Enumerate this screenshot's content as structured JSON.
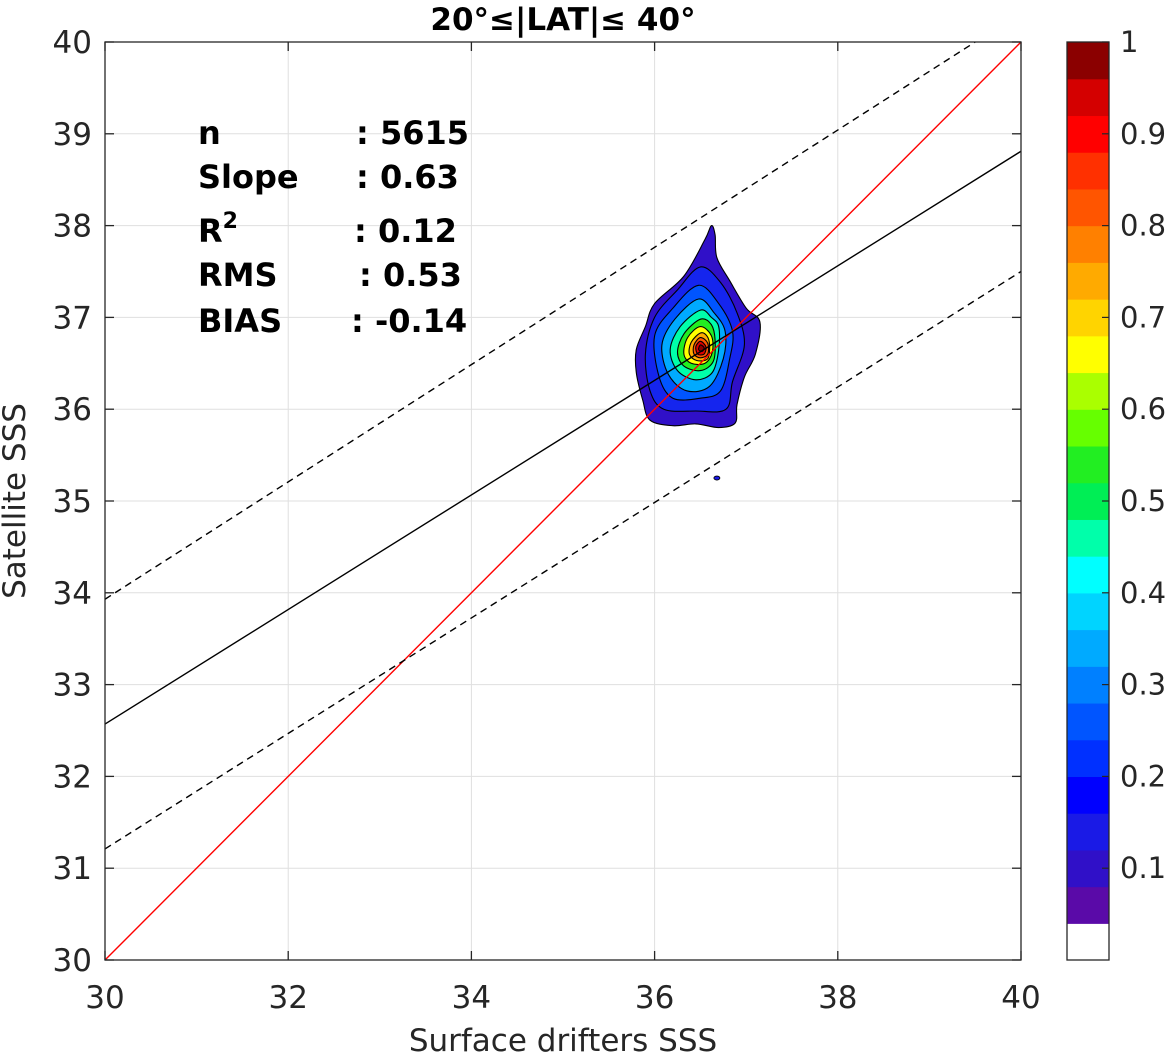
{
  "chart_data": {
    "type": "contour",
    "title": "20°≤|LAT|≤ 40°",
    "xlabel": "Surface drifters SSS",
    "ylabel": "Satellite SSS",
    "xlim": [
      30,
      40
    ],
    "ylim": [
      30,
      40
    ],
    "xticks": [
      "30",
      "32",
      "34",
      "36",
      "38",
      "40"
    ],
    "yticks": [
      "30",
      "31",
      "32",
      "33",
      "34",
      "35",
      "36",
      "37",
      "38",
      "39",
      "40"
    ],
    "grid": true,
    "stats": [
      {
        "label": "n",
        "value": ": 5615"
      },
      {
        "label": "Slope",
        "value": ": 0.63"
      },
      {
        "label": "R",
        "sup": "2",
        "value": ": 0.12"
      },
      {
        "label": "RMS",
        "value": ": 0.53"
      },
      {
        "label": "BIAS",
        "value": ": -0.14"
      }
    ],
    "lines": [
      {
        "name": "one-to-one",
        "x": [
          30,
          40
        ],
        "y": [
          30,
          40
        ],
        "color": "#ff0000",
        "dash": false
      },
      {
        "name": "regression",
        "x": [
          30,
          40
        ],
        "y": [
          32.57,
          38.81
        ],
        "color": "#000000",
        "dash": false
      },
      {
        "name": "upper-bound",
        "x": [
          30,
          39.5
        ],
        "y": [
          33.93,
          40
        ],
        "color": "#000000",
        "dash": true
      },
      {
        "name": "lower-bound",
        "x": [
          30,
          40
        ],
        "y": [
          31.21,
          37.5
        ],
        "color": "#000000",
        "dash": true
      }
    ],
    "density_peak": {
      "x": 36.5,
      "y": 36.65
    },
    "contour_levels": [
      {
        "level": 0.05,
        "color": "#3010c8",
        "points": [
          [
            36.62,
            38.0
          ],
          [
            36.55,
            37.85
          ],
          [
            36.32,
            37.45
          ],
          [
            36.0,
            37.15
          ],
          [
            35.9,
            36.9
          ],
          [
            35.8,
            36.65
          ],
          [
            35.8,
            36.4
          ],
          [
            35.87,
            36.1
          ],
          [
            35.95,
            35.88
          ],
          [
            36.2,
            35.82
          ],
          [
            36.45,
            35.84
          ],
          [
            36.7,
            35.8
          ],
          [
            36.88,
            35.85
          ],
          [
            36.9,
            36.05
          ],
          [
            36.98,
            36.35
          ],
          [
            37.1,
            36.6
          ],
          [
            37.15,
            36.95
          ],
          [
            37.0,
            37.1
          ],
          [
            36.82,
            37.4
          ],
          [
            36.68,
            37.65
          ],
          [
            36.66,
            37.9
          ]
        ]
      },
      {
        "level": 0.1,
        "color": "#1525ee",
        "points": [
          [
            36.5,
            37.55
          ],
          [
            36.25,
            37.3
          ],
          [
            36.0,
            37.0
          ],
          [
            35.9,
            36.6
          ],
          [
            35.95,
            36.2
          ],
          [
            36.1,
            36.0
          ],
          [
            36.45,
            35.98
          ],
          [
            36.78,
            36.0
          ],
          [
            36.85,
            36.3
          ],
          [
            36.98,
            36.7
          ],
          [
            36.9,
            37.05
          ],
          [
            36.72,
            37.38
          ]
        ]
      },
      {
        "level": 0.2,
        "color": "#0055ff",
        "points": [
          [
            36.48,
            37.35
          ],
          [
            36.2,
            37.1
          ],
          [
            36.0,
            36.8
          ],
          [
            36.05,
            36.35
          ],
          [
            36.2,
            36.12
          ],
          [
            36.5,
            36.12
          ],
          [
            36.72,
            36.2
          ],
          [
            36.82,
            36.55
          ],
          [
            36.85,
            36.85
          ],
          [
            36.7,
            37.15
          ]
        ]
      },
      {
        "level": 0.3,
        "color": "#00aaff",
        "points": [
          [
            36.48,
            37.2
          ],
          [
            36.22,
            36.98
          ],
          [
            36.08,
            36.7
          ],
          [
            36.15,
            36.38
          ],
          [
            36.35,
            36.2
          ],
          [
            36.6,
            36.25
          ],
          [
            36.75,
            36.55
          ],
          [
            36.77,
            36.85
          ],
          [
            36.65,
            37.05
          ]
        ]
      },
      {
        "level": 0.4,
        "color": "#00ffaa",
        "points": [
          [
            36.5,
            37.08
          ],
          [
            36.28,
            36.9
          ],
          [
            36.17,
            36.65
          ],
          [
            36.25,
            36.42
          ],
          [
            36.45,
            36.32
          ],
          [
            36.63,
            36.4
          ],
          [
            36.7,
            36.65
          ],
          [
            36.7,
            36.9
          ],
          [
            36.62,
            37.0
          ]
        ]
      },
      {
        "level": 0.5,
        "color": "#22ee22",
        "points": [
          [
            36.5,
            36.98
          ],
          [
            36.32,
            36.82
          ],
          [
            36.25,
            36.62
          ],
          [
            36.32,
            36.47
          ],
          [
            36.5,
            36.42
          ],
          [
            36.64,
            36.52
          ],
          [
            36.66,
            36.75
          ],
          [
            36.62,
            36.92
          ]
        ]
      },
      {
        "level": 0.6,
        "color": "#ffff00",
        "points": [
          [
            36.5,
            36.9
          ],
          [
            36.36,
            36.78
          ],
          [
            36.32,
            36.6
          ],
          [
            36.4,
            36.5
          ],
          [
            36.55,
            36.5
          ],
          [
            36.63,
            36.62
          ],
          [
            36.62,
            36.8
          ]
        ]
      },
      {
        "level": 0.7,
        "color": "#ffaa00",
        "points": [
          [
            36.5,
            36.83
          ],
          [
            36.4,
            36.73
          ],
          [
            36.38,
            36.6
          ],
          [
            36.46,
            36.53
          ],
          [
            36.58,
            36.55
          ],
          [
            36.6,
            36.7
          ],
          [
            36.57,
            36.8
          ]
        ]
      },
      {
        "level": 0.8,
        "color": "#ff5500",
        "points": [
          [
            36.5,
            36.78
          ],
          [
            36.43,
            36.7
          ],
          [
            36.43,
            36.6
          ],
          [
            36.5,
            36.56
          ],
          [
            36.58,
            36.6
          ],
          [
            36.58,
            36.72
          ]
        ]
      },
      {
        "level": 0.9,
        "color": "#dd0000",
        "points": [
          [
            36.5,
            36.74
          ],
          [
            36.45,
            36.68
          ],
          [
            36.47,
            36.6
          ],
          [
            36.54,
            36.6
          ],
          [
            36.56,
            36.68
          ]
        ]
      },
      {
        "level": 1.0,
        "color": "#8b0000",
        "points": [
          [
            36.5,
            36.7
          ],
          [
            36.48,
            36.65
          ],
          [
            36.52,
            36.63
          ],
          [
            36.54,
            36.67
          ]
        ]
      }
    ],
    "outlier": {
      "x": 36.68,
      "y": 35.25
    },
    "colorbar": {
      "range": [
        0,
        1
      ],
      "tick_labels": [
        "0.1",
        "0.2",
        "0.3",
        "0.4",
        "0.5",
        "0.6",
        "0.7",
        "0.8",
        "0.9",
        "1"
      ],
      "tick_values": [
        0.1,
        0.2,
        0.3,
        0.4,
        0.5,
        0.6,
        0.7,
        0.8,
        0.9,
        1.0
      ],
      "bands": [
        "#ffffff",
        "#5a0aa8",
        "#3010c8",
        "#1a1ae6",
        "#0000ff",
        "#0030ff",
        "#0055ff",
        "#0080ff",
        "#00aaff",
        "#00d4ff",
        "#00ffff",
        "#00ffaa",
        "#00ee55",
        "#22ee22",
        "#66ff00",
        "#aaff00",
        "#ffff00",
        "#ffd400",
        "#ffaa00",
        "#ff8000",
        "#ff5500",
        "#ff3000",
        "#ff0000",
        "#d40000",
        "#8b0000"
      ]
    }
  }
}
